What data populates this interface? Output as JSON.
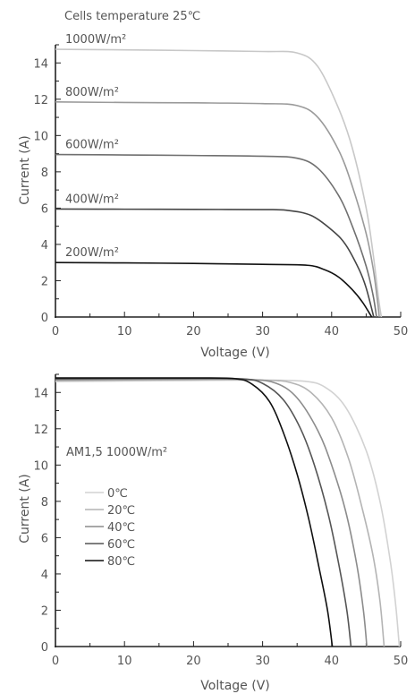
{
  "chart_data": [
    {
      "type": "line",
      "subtitle": "Cells temperature 25℃",
      "xlabel": "Voltage (V)",
      "ylabel": "Current (A)",
      "xlim": [
        0,
        50
      ],
      "ylim": [
        0,
        15
      ],
      "x_ticks": [
        "0",
        "10",
        "20",
        "30",
        "40",
        "50"
      ],
      "y_ticks": [
        "0",
        "2",
        "4",
        "6",
        "8",
        "10",
        "12",
        "14"
      ],
      "grid": false,
      "legend": "inline labels above each curve",
      "series": [
        {
          "name": "1000W/m²",
          "color": "#c8c8c8",
          "isc": 14.75,
          "knee_v": 37.5,
          "imp": 14.5,
          "voc": 47.2,
          "points": [
            [
              0,
              14.75
            ],
            [
              10,
              14.72
            ],
            [
              20,
              14.68
            ],
            [
              30,
              14.63
            ],
            [
              35,
              14.55
            ],
            [
              38,
              13.8
            ],
            [
              41,
              11.5
            ],
            [
              43,
              9.3
            ],
            [
              45,
              6.0
            ],
            [
              46,
              3.5
            ],
            [
              46.8,
              1.0
            ],
            [
              47.2,
              0
            ]
          ]
        },
        {
          "name": "800W/m²",
          "color": "#9a9a9a",
          "isc": 11.85,
          "knee_v": 37.0,
          "imp": 11.6,
          "voc": 46.9,
          "points": [
            [
              0,
              11.85
            ],
            [
              10,
              11.82
            ],
            [
              20,
              11.8
            ],
            [
              30,
              11.76
            ],
            [
              35,
              11.65
            ],
            [
              38,
              11.0
            ],
            [
              41,
              9.2
            ],
            [
              43,
              7.2
            ],
            [
              45,
              4.6
            ],
            [
              46,
              2.7
            ],
            [
              46.6,
              1.0
            ],
            [
              46.9,
              0
            ]
          ]
        },
        {
          "name": "600W/m²",
          "color": "#707070",
          "isc": 8.95,
          "knee_v": 36.0,
          "imp": 8.7,
          "voc": 46.5,
          "points": [
            [
              0,
              8.95
            ],
            [
              10,
              8.93
            ],
            [
              20,
              8.9
            ],
            [
              30,
              8.86
            ],
            [
              35,
              8.75
            ],
            [
              38,
              8.2
            ],
            [
              41,
              6.7
            ],
            [
              43,
              5.0
            ],
            [
              45,
              2.8
            ],
            [
              46,
              1.2
            ],
            [
              46.5,
              0
            ]
          ]
        },
        {
          "name": "400W/m²",
          "color": "#454545",
          "isc": 5.95,
          "knee_v": 34.0,
          "imp": 5.8,
          "voc": 46.1,
          "points": [
            [
              0,
              5.95
            ],
            [
              10,
              5.94
            ],
            [
              20,
              5.93
            ],
            [
              30,
              5.92
            ],
            [
              33.5,
              5.88
            ],
            [
              37,
              5.6
            ],
            [
              40,
              4.8
            ],
            [
              42,
              4.0
            ],
            [
              44,
              2.6
            ],
            [
              45,
              1.6
            ],
            [
              46.1,
              0
            ]
          ]
        },
        {
          "name": "200W/m²",
          "color": "#111111",
          "isc": 3.0,
          "knee_v": 37.0,
          "imp": 2.85,
          "voc": 45.8,
          "points": [
            [
              0,
              3.0
            ],
            [
              10,
              2.98
            ],
            [
              20,
              2.95
            ],
            [
              30,
              2.9
            ],
            [
              36.5,
              2.85
            ],
            [
              39,
              2.6
            ],
            [
              41,
              2.2
            ],
            [
              43,
              1.5
            ],
            [
              44.5,
              0.8
            ],
            [
              45.8,
              0
            ]
          ]
        }
      ]
    },
    {
      "type": "line",
      "subtitle": "AM1,5 1000W/m²",
      "xlabel": "Voltage (V)",
      "ylabel": "Current (A)",
      "xlim": [
        0,
        50
      ],
      "ylim": [
        0,
        15
      ],
      "x_ticks": [
        "0",
        "10",
        "20",
        "30",
        "40",
        "50"
      ],
      "y_ticks": [
        "0",
        "2",
        "4",
        "6",
        "8",
        "10",
        "12",
        "14"
      ],
      "grid": false,
      "legend": "left, middle",
      "series": [
        {
          "name": "0℃",
          "color": "#d2d2d2",
          "isc": 14.6,
          "voc": 49.8,
          "points": [
            [
              0,
              14.6
            ],
            [
              10,
              14.63
            ],
            [
              20,
              14.66
            ],
            [
              30,
              14.68
            ],
            [
              36,
              14.62
            ],
            [
              39,
              14.3
            ],
            [
              42,
              13.2
            ],
            [
              45,
              10.8
            ],
            [
              47,
              8.0
            ],
            [
              48.5,
              4.7
            ],
            [
              49.3,
              2.2
            ],
            [
              49.8,
              0
            ]
          ]
        },
        {
          "name": "20℃",
          "color": "#b4b4b4",
          "isc": 14.65,
          "voc": 47.6,
          "points": [
            [
              0,
              14.65
            ],
            [
              10,
              14.68
            ],
            [
              20,
              14.7
            ],
            [
              30,
              14.68
            ],
            [
              34,
              14.55
            ],
            [
              37,
              14.0
            ],
            [
              40,
              12.6
            ],
            [
              42.5,
              10.3
            ],
            [
              44.5,
              7.5
            ],
            [
              46,
              5.0
            ],
            [
              47,
              2.5
            ],
            [
              47.6,
              0
            ]
          ]
        },
        {
          "name": "40℃",
          "color": "#8c8c8c",
          "isc": 14.7,
          "voc": 45.1,
          "points": [
            [
              0,
              14.7
            ],
            [
              10,
              14.72
            ],
            [
              20,
              14.74
            ],
            [
              28,
              14.72
            ],
            [
              32,
              14.5
            ],
            [
              35,
              13.7
            ],
            [
              38,
              11.9
            ],
            [
              40,
              10.0
            ],
            [
              42,
              7.5
            ],
            [
              43.6,
              4.6
            ],
            [
              44.6,
              2.0
            ],
            [
              45.1,
              0
            ]
          ]
        },
        {
          "name": "60℃",
          "color": "#555555",
          "isc": 14.75,
          "voc": 42.8,
          "points": [
            [
              0,
              14.75
            ],
            [
              10,
              14.77
            ],
            [
              20,
              14.78
            ],
            [
              27,
              14.75
            ],
            [
              30,
              14.5
            ],
            [
              33,
              13.6
            ],
            [
              35.5,
              12.0
            ],
            [
              37.5,
              10.0
            ],
            [
              39.5,
              7.3
            ],
            [
              41,
              4.6
            ],
            [
              42.2,
              2.0
            ],
            [
              42.8,
              0
            ]
          ]
        },
        {
          "name": "80℃",
          "color": "#0f0f0f",
          "isc": 14.8,
          "voc": 40.1,
          "points": [
            [
              0,
              14.8
            ],
            [
              10,
              14.8
            ],
            [
              20,
              14.8
            ],
            [
              26,
              14.76
            ],
            [
              28.5,
              14.45
            ],
            [
              31,
              13.5
            ],
            [
              33,
              11.8
            ],
            [
              35,
              9.5
            ],
            [
              36.7,
              7.0
            ],
            [
              38.2,
              4.3
            ],
            [
              39.4,
              2.0
            ],
            [
              40.1,
              0
            ]
          ]
        }
      ]
    }
  ]
}
